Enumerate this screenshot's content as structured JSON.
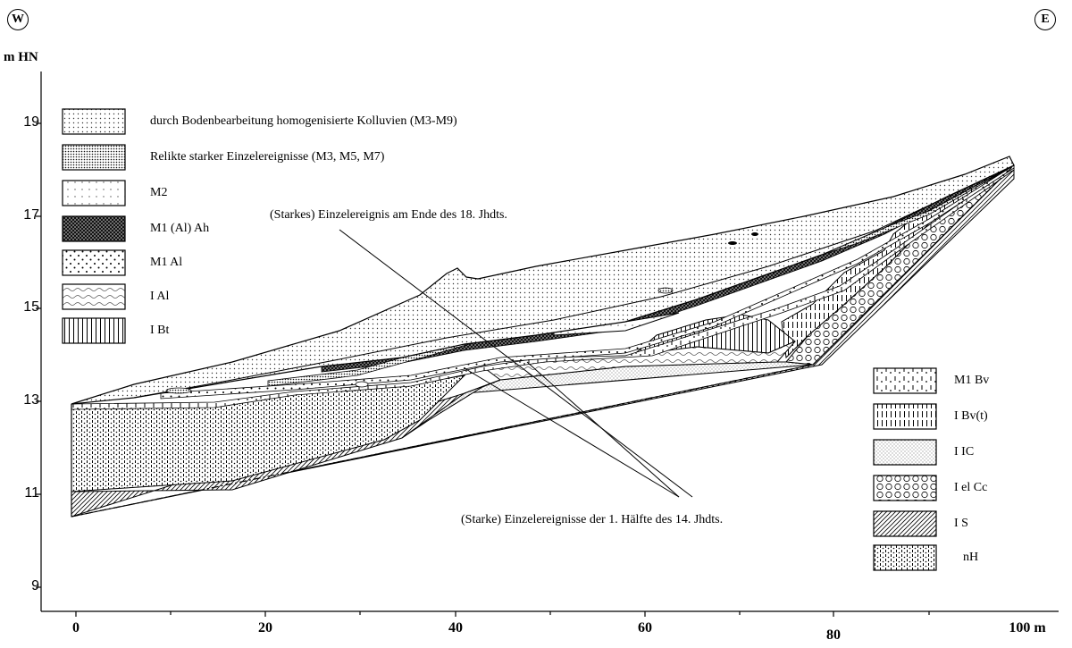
{
  "compass": {
    "west": "W",
    "east": "E"
  },
  "axes": {
    "y_unit": "m HN",
    "y_ticks": [
      "19",
      "17",
      "15",
      "13",
      "11",
      "9"
    ],
    "x_ticks": [
      "0",
      "20",
      "40",
      "60",
      "80"
    ],
    "x_unit_label": "100 m"
  },
  "legend_left": [
    {
      "label": "durch Bodenbearbeitung homogenisierte Kolluvien (M3-M9)",
      "pattern": "dots-fine"
    },
    {
      "label": "Relikte starker Einzelereignisse (M3, M5, M7)",
      "pattern": "dots-dense"
    },
    {
      "label": "M2",
      "pattern": "dots-sparse"
    },
    {
      "label": "M1 (Al) Ah",
      "pattern": "cross-dark"
    },
    {
      "label": "M1 Al",
      "pattern": "dot-circles"
    },
    {
      "label": "I Al",
      "pattern": "waves"
    },
    {
      "label": "I Bt",
      "pattern": "vertical-lines"
    }
  ],
  "legend_right": [
    {
      "label": "M1 Bv",
      "pattern": "dash-dots"
    },
    {
      "label": "I Bv(t)",
      "pattern": "vertical-dashes"
    },
    {
      "label": "I IC",
      "pattern": "fine-stipple"
    },
    {
      "label": "I el Cc",
      "pattern": "circles"
    },
    {
      "label": "I S",
      "pattern": "diagonal"
    },
    {
      "label": "nH",
      "pattern": "vert-dots"
    }
  ],
  "annotations": {
    "upper": "(Starkes) Einzelereignis am Ende des 18. Jhdts.",
    "lower": "(Starke) Einzelereignisse der 1. Hälfte des 14. Jhdts."
  }
}
